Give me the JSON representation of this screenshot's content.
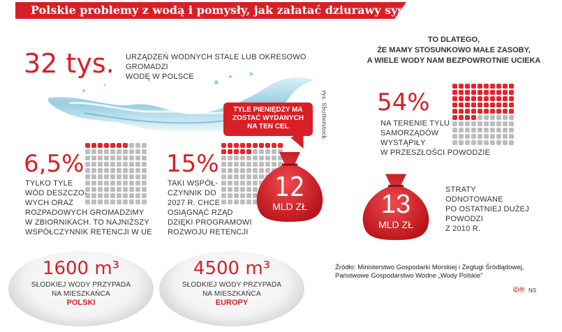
{
  "header": {
    "title": "Polskie problemy z wodą i pomysły, jak załatać dziurawy system"
  },
  "devices": {
    "value": "32 tys.",
    "text_line1": "urządzeń wodnych stale lub okresowo gromadzi",
    "text_line2": "wodę w Polsce"
  },
  "credit": "rys. Shutterstock",
  "reason": {
    "line1": "TO DLATEGO,",
    "line2": "ŻE MAMY STOSUNKOWO MAŁE ZASOBY,",
    "line3": "A WIELE WODY NAM BEZPOWROTNIE UCIEKA"
  },
  "rain": {
    "value": "6,5%",
    "lines": [
      "tylko tyle",
      "wód deszczo-",
      "wych oraz",
      "rozpadowych gromadzimy",
      "w zbiornikach. To najniższy",
      "współczynnik retencji w UE"
    ],
    "percent": 6.5
  },
  "retention": {
    "value": "15%",
    "lines": [
      "taki współ-",
      "czynnik do",
      "2027 r. chce",
      "osiągnąć rząd",
      "dzięki Programowi",
      "Rozwoju Retencji"
    ],
    "percent": 15
  },
  "callout": {
    "line1": "Tyle pieniędzy ma",
    "line2": "zostać wydanych",
    "line3": "na ten cel"
  },
  "bag_spend": {
    "number": "12",
    "unit": "MLD ZŁ"
  },
  "flood": {
    "value": "54%",
    "lines": [
      "na terenie tylu",
      "samorządów",
      "wystąpiły",
      "w przeszłości powodzie"
    ],
    "percent": 54
  },
  "bag_loss": {
    "number": "13",
    "unit": "MLD ZŁ"
  },
  "losses": {
    "lines": [
      "straty",
      "odnotowane",
      "po ostatniej dużej",
      "powodzi",
      "z 2010 r."
    ]
  },
  "bubble_poland": {
    "value": "1600 m³",
    "line1": "słodkiej wody przypada",
    "line2": "na mieszkańca",
    "region": "Polski"
  },
  "bubble_europe": {
    "value": "4500 m³",
    "line1": "słodkiej wody przypada",
    "line2": "na mieszkańca",
    "region": "Europy"
  },
  "source": {
    "line1": "Źródło: Ministerstwo Gospodarki Morskiej i Żeglugi Śródlądowej,",
    "line2": "Państwowe Gospodarstwo Wodne „Wody Polskie”"
  },
  "footer": {
    "logo": "©℗",
    "initials": "NS"
  },
  "colors": {
    "accent": "#d91f26",
    "grey_dot": "#bdbdbd"
  }
}
